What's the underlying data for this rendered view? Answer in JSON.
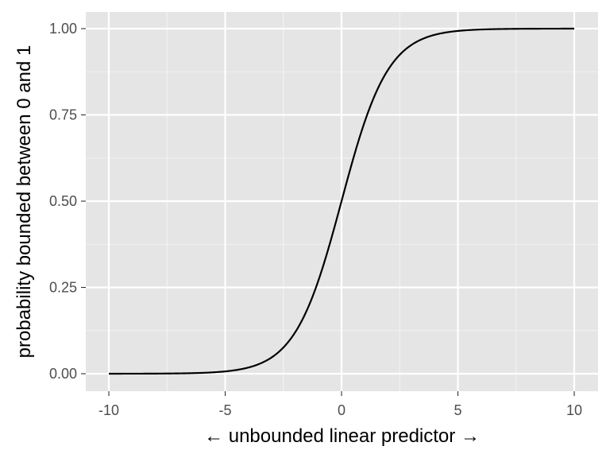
{
  "chart_data": {
    "type": "line",
    "function": "logistic",
    "xlabel": "← unbounded linear predictor →",
    "ylabel": "probability bounded between 0 and 1",
    "xlim": [
      -10,
      10
    ],
    "ylim": [
      0,
      1
    ],
    "x_ticks": [
      -10,
      -5,
      0,
      5,
      10
    ],
    "x_tick_labels": [
      "-10",
      "-5",
      "0",
      "5",
      "10"
    ],
    "y_ticks": [
      0,
      0.25,
      0.5,
      0.75,
      1
    ],
    "y_tick_labels": [
      "0.00",
      "0.25",
      "0.50",
      "0.75",
      "1.00"
    ],
    "grid": true,
    "series": [
      {
        "x": [
          -10,
          -8,
          -6,
          -5,
          -4,
          -3,
          -2.5,
          -2,
          -1.5,
          -1,
          -0.5,
          0,
          0.5,
          1,
          1.5,
          2,
          2.5,
          3,
          4,
          5,
          6,
          8,
          10
        ],
        "y": [
          4.54e-05,
          0.000335,
          0.00247,
          0.00669,
          0.018,
          0.0474,
          0.0759,
          0.119,
          0.182,
          0.269,
          0.378,
          0.5,
          0.622,
          0.731,
          0.818,
          0.881,
          0.924,
          0.953,
          0.982,
          0.993,
          0.998,
          0.99966,
          0.99995
        ],
        "color": "#000000"
      }
    ],
    "colors": {
      "panel_background": "#e5e5e5",
      "grid_major": "#ffffff",
      "grid_minor": "#f2f2f2",
      "tick_label": "#4d4d4d",
      "axis_title": "#000000"
    }
  }
}
